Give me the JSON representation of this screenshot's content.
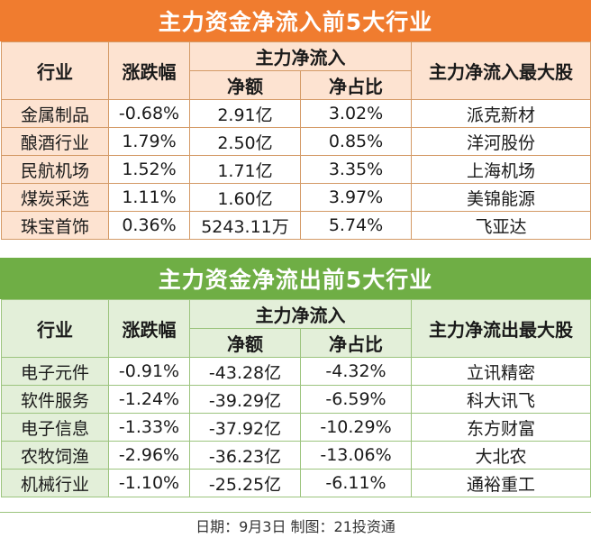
{
  "inflow": {
    "title": "主力资金净流入前5大行业",
    "headers": {
      "industry": "行业",
      "change": "涨跌幅",
      "group": "主力净流入",
      "amount": "净额",
      "ratio": "净占比",
      "top_stock": "主力净流入最大股"
    },
    "rows": [
      {
        "industry": "金属制品",
        "change": "-0.68%",
        "amount": "2.91亿",
        "ratio": "3.02%",
        "stock": "派克新材"
      },
      {
        "industry": "酿酒行业",
        "change": "1.79%",
        "amount": "2.50亿",
        "ratio": "0.85%",
        "stock": "洋河股份"
      },
      {
        "industry": "民航机场",
        "change": "1.52%",
        "amount": "1.71亿",
        "ratio": "3.35%",
        "stock": "上海机场"
      },
      {
        "industry": "煤炭采选",
        "change": "1.11%",
        "amount": "1.60亿",
        "ratio": "3.97%",
        "stock": "美锦能源"
      },
      {
        "industry": "珠宝首饰",
        "change": "0.36%",
        "amount": "5243.11万",
        "ratio": "5.74%",
        "stock": "飞亚达"
      }
    ]
  },
  "outflow": {
    "title": "主力资金净流出前5大行业",
    "headers": {
      "industry": "行业",
      "change": "涨跌幅",
      "group": "主力净流入",
      "amount": "净额",
      "ratio": "净占比",
      "top_stock": "主力净流出最大股"
    },
    "rows": [
      {
        "industry": "电子元件",
        "change": "-0.91%",
        "amount": "-43.28亿",
        "ratio": "-4.32%",
        "stock": "立讯精密"
      },
      {
        "industry": "软件服务",
        "change": "-1.24%",
        "amount": "-39.29亿",
        "ratio": "-6.59%",
        "stock": "科大讯飞"
      },
      {
        "industry": "电子信息",
        "change": "-1.33%",
        "amount": "-37.92亿",
        "ratio": "-10.29%",
        "stock": "东方财富"
      },
      {
        "industry": "农牧饲渔",
        "change": "-2.96%",
        "amount": "-36.23亿",
        "ratio": "-13.06%",
        "stock": "大北农"
      },
      {
        "industry": "机械行业",
        "change": "-1.10%",
        "amount": "-25.25亿",
        "ratio": "-6.11%",
        "stock": "通裕重工"
      }
    ]
  },
  "footer": "日期：9月3日  制图：21投资通",
  "colors": {
    "inflow_accent": "#f07c2f",
    "outflow_accent": "#6fae45"
  }
}
